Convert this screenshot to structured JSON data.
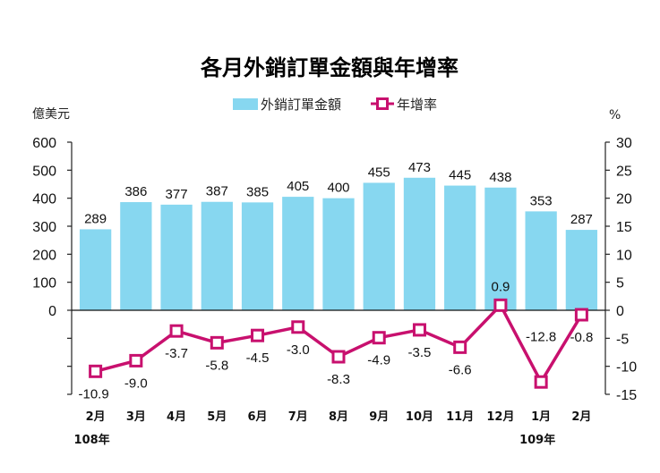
{
  "chart_data": {
    "type": "bar",
    "title": "各月外銷訂單金額與年增率",
    "categories": [
      "2月",
      "3月",
      "4月",
      "5月",
      "6月",
      "7月",
      "8月",
      "9月",
      "10月",
      "11月",
      "12月",
      "1月",
      "2月"
    ],
    "year_labels": [
      {
        "category_index": 0,
        "label": "108年"
      },
      {
        "category_index": 11,
        "label": "109年"
      }
    ],
    "series": [
      {
        "name": "外銷訂單金額",
        "type": "bar",
        "axis": "left",
        "color": "#87D7F0",
        "values": [
          289,
          386,
          377,
          387,
          385,
          405,
          400,
          455,
          473,
          445,
          438,
          353,
          287
        ],
        "labels": [
          "289",
          "386",
          "377",
          "387",
          "385",
          "405",
          "400",
          "455",
          "473",
          "445",
          "438",
          "353",
          "287"
        ]
      },
      {
        "name": "年增率",
        "type": "line",
        "axis": "right",
        "color": "#C8106E",
        "marker": "square-hollow",
        "values": [
          -10.9,
          -9.0,
          -3.7,
          -5.8,
          -4.5,
          -3.0,
          -8.3,
          -4.9,
          -3.5,
          -6.6,
          0.9,
          -12.8,
          -0.8
        ],
        "labels": [
          "-10.9",
          "-9.0",
          "-3.7",
          "-5.8",
          "-4.5",
          "-3.0",
          "-8.3",
          "-4.9",
          "-3.5",
          "-6.6",
          "0.9",
          "-12.8",
          "-0.8"
        ]
      }
    ],
    "left_axis": {
      "unit_label": "億美元",
      "range": [
        -300,
        600
      ],
      "ticks": [
        600,
        500,
        400,
        300,
        200,
        100,
        0,
        -100,
        -200,
        -300
      ],
      "tick_labels": [
        "600",
        "500",
        "400",
        "300",
        "200",
        "100",
        "0",
        "",
        "",
        ""
      ]
    },
    "right_axis": {
      "unit_label": "%",
      "range": [
        -15,
        30
      ],
      "ticks": [
        30,
        25,
        20,
        15,
        10,
        5,
        0,
        -5,
        -10,
        -15
      ],
      "tick_labels": [
        "30",
        "25",
        "20",
        "15",
        "10",
        "5",
        "0",
        "-5",
        "-10",
        "-15"
      ]
    },
    "legend": {
      "position": "top-center",
      "entries": [
        "外銷訂單金額",
        "年增率"
      ]
    },
    "grid": false,
    "zero_line": true
  }
}
